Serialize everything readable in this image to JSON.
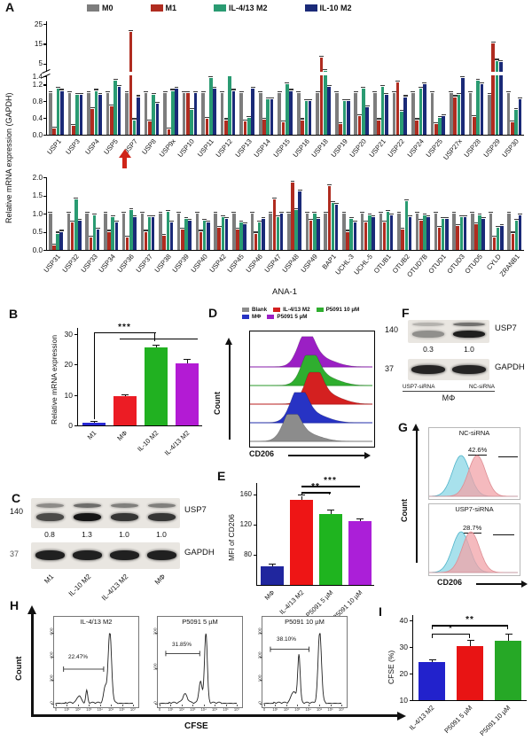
{
  "labels": {
    "A": "A",
    "B": "B",
    "C": "C",
    "D": "D",
    "E": "E",
    "F": "F",
    "G": "G",
    "H": "H",
    "I": "I"
  },
  "chart_data": {
    "panelA_row1": {
      "type": "bar",
      "ylabel": "Relative mRNA expression (GAPDH)",
      "yticks_top": [
        5,
        15,
        25
      ],
      "yticks_bottom": [
        0.0,
        0.4,
        0.8,
        1.2,
        1.4
      ],
      "break_value": 1.4,
      "ymax": 25,
      "arrow_at": "USP7",
      "categories": [
        "USP1",
        "USP3",
        "USP4",
        "USP5",
        "USP7",
        "USP8",
        "USP9x",
        "USP10",
        "USP11",
        "USP12",
        "USP13",
        "USP14",
        "USP15",
        "USP16",
        "USP18",
        "USP19",
        "USP20",
        "USP21",
        "USP22",
        "USP24",
        "USP25",
        "USP27x",
        "USP28",
        "USP29",
        "USP30"
      ],
      "series": [
        {
          "name": "M0",
          "color": "#7d7d7d",
          "values": [
            1,
            1,
            1,
            1,
            1,
            1,
            1,
            1,
            1,
            1,
            1,
            1,
            1,
            1,
            1,
            1,
            1,
            1,
            1,
            1,
            1,
            1,
            1,
            0.95,
            1
          ]
        },
        {
          "name": "M1",
          "color": "#b02c20",
          "values": [
            0.15,
            0.22,
            0.62,
            0.68,
            21,
            0.32,
            0.12,
            1.0,
            0.38,
            0.35,
            0.32,
            0.36,
            0.3,
            0.35,
            8.0,
            0.25,
            0.45,
            0.35,
            1.25,
            0.35,
            0.25,
            0.9,
            0.42,
            15.0,
            0.3
          ]
        },
        {
          "name": "IL-4/13 M2",
          "color": "#2a9b72",
          "values": [
            1.1,
            0.95,
            1.05,
            1.3,
            0.35,
            0.95,
            1.05,
            0.6,
            1.35,
            1.4,
            0.4,
            0.85,
            1.2,
            0.8,
            1.5,
            0.8,
            1.1,
            1.15,
            0.55,
            1.1,
            0.4,
            0.95,
            1.3,
            6.5,
            0.6
          ]
        },
        {
          "name": "IL-10 M2",
          "color": "#1a2a78",
          "values": [
            1.05,
            0.95,
            0.95,
            1.15,
            0.9,
            0.75,
            1.1,
            1.0,
            1.1,
            1.05,
            1.1,
            0.85,
            1.05,
            0.8,
            1.15,
            0.8,
            0.65,
            0.95,
            0.9,
            1.2,
            0.45,
            1.35,
            1.2,
            6.0,
            0.85
          ]
        }
      ]
    },
    "panelA_row2": {
      "type": "bar",
      "xlabel": "ANA-1",
      "ymax": 2.0,
      "yticks": [
        0.0,
        0.5,
        1.0,
        1.5,
        2.0
      ],
      "categories": [
        "USP31",
        "USP32",
        "USP33",
        "USP34",
        "USP36",
        "USP37",
        "USP38",
        "USP39",
        "USP40",
        "USP42",
        "USP45",
        "USP46",
        "USP47",
        "USP48",
        "USP49",
        "BAP1",
        "UCHL-3",
        "UCHL-5",
        "OTUB1",
        "OTUB2",
        "OTUD7B",
        "OTUD1",
        "OTUD3",
        "OTUD5",
        "CYLD",
        "ZRANB1"
      ],
      "series": [
        {
          "name": "M0",
          "color": "#7d7d7d",
          "values": [
            1,
            1,
            1,
            1,
            1,
            1,
            1,
            1,
            1,
            1,
            1,
            1,
            1,
            1,
            1,
            1,
            1,
            1,
            1,
            1,
            1,
            1,
            1,
            1,
            1,
            1
          ]
        },
        {
          "name": "M1",
          "color": "#b02c20",
          "values": [
            0.12,
            0.75,
            0.35,
            0.5,
            0.35,
            0.5,
            0.4,
            0.55,
            0.5,
            0.6,
            0.55,
            0.45,
            1.4,
            1.85,
            0.8,
            1.75,
            0.5,
            0.75,
            0.75,
            0.55,
            0.8,
            0.6,
            0.65,
            0.7,
            0.35,
            0.45
          ]
        },
        {
          "name": "IL-4/13 M2",
          "color": "#2a9b72",
          "values": [
            0.45,
            1.4,
            0.95,
            0.9,
            1.1,
            0.9,
            1.05,
            0.85,
            0.8,
            0.9,
            0.75,
            0.75,
            0.9,
            1.1,
            1.0,
            1.3,
            0.85,
            0.95,
            1.05,
            1.35,
            0.95,
            0.85,
            0.9,
            0.95,
            0.6,
            0.8
          ]
        },
        {
          "name": "IL-10 M2",
          "color": "#1a2a78",
          "values": [
            0.5,
            0.8,
            0.55,
            0.75,
            0.9,
            0.9,
            0.75,
            0.8,
            0.75,
            0.85,
            0.7,
            0.85,
            1.0,
            1.6,
            0.85,
            1.25,
            0.75,
            0.9,
            0.95,
            0.9,
            0.9,
            0.85,
            0.9,
            0.85,
            0.65,
            0.95
          ]
        }
      ]
    },
    "panelB": {
      "type": "bar",
      "ylabel": "Relative mRNA expression",
      "ylim": [
        0,
        32
      ],
      "yticks": [
        0,
        10,
        20,
        30
      ],
      "categories": [
        "M1",
        "MΦ",
        "IL-10 M2",
        "IL-4/13 M2"
      ],
      "values": [
        1,
        9.5,
        25.5,
        20.5
      ],
      "errors": [
        0.15,
        0.3,
        0.8,
        0.9
      ],
      "colors": [
        "#2929d4",
        "#ec1c24",
        "#21b121",
        "#b31bd4"
      ],
      "sigs": [
        {
          "x1": 0,
          "x2": 2,
          "y": 30.5,
          "y1": 2,
          "y2": 27.5,
          "stars": "***"
        },
        {
          "x1": 0.85,
          "x2": 3.35,
          "y": 28.6,
          "y1": 28.6,
          "y2": 28.6,
          "stars": ""
        }
      ]
    },
    "panelD": {
      "type": "flow-histogram-ridge",
      "xlabel": "CD206",
      "ylabel": "Count",
      "legend": [
        {
          "name": "Blank",
          "color": "#8c8c8c"
        },
        {
          "name": "IL-4/13 M2",
          "color": "#d42020"
        },
        {
          "name": "P5091 10 µM",
          "color": "#2fae2f"
        },
        {
          "name": "MΦ",
          "color": "#2733c4"
        },
        {
          "name": "P5091 5 µM",
          "color": "#9b1fc4"
        }
      ],
      "ridges": [
        {
          "name": "Blank",
          "color": "#8c8c8c",
          "center": 0.34,
          "height": 0.85
        },
        {
          "name": "MΦ",
          "color": "#2733c4",
          "center": 0.4,
          "height": 0.95
        },
        {
          "name": "IL-4/13 M2",
          "color": "#d42020",
          "center": 0.52,
          "height": 1.0
        },
        {
          "name": "P5091 10 µM",
          "color": "#2fae2f",
          "center": 0.49,
          "height": 0.95
        },
        {
          "name": "P5091 5 µM",
          "color": "#9b1fc4",
          "center": 0.46,
          "height": 0.95
        }
      ]
    },
    "panelE": {
      "type": "bar",
      "ylabel": "MFI of CD206",
      "ylim": [
        40,
        175
      ],
      "yticks": [
        80,
        120,
        160
      ],
      "categories": [
        "MΦ",
        "IL-4/13 M2",
        "P5091 5 µM",
        "P5091 10 µM"
      ],
      "values": [
        65,
        153,
        134,
        124
      ],
      "errors": [
        2,
        5,
        5,
        3
      ],
      "colors": [
        "#20269e",
        "#ee1515",
        "#1fb41f",
        "#ab1fd8"
      ],
      "sigs": [
        {
          "x1": 1,
          "x2": 2,
          "y": 163,
          "y1": 160,
          "y2": 160,
          "stars": "**"
        },
        {
          "x1": 1,
          "x2": 3,
          "y": 171,
          "y1": 171,
          "y2": 171,
          "stars": "***"
        }
      ]
    },
    "panelG": {
      "type": "flow-histogram-overlay",
      "ylabel": "Count",
      "xlabel": "CD206",
      "fill_left": "#8bd7e6",
      "fill_right": "#f2a3a8",
      "plots": [
        {
          "title": "NC-siRNA",
          "percent": "42.6%",
          "center_left": 0.36,
          "center_right": 0.54
        },
        {
          "title": "USP7-siRNA",
          "percent": "28.7%",
          "center_left": 0.36,
          "center_right": 0.47
        }
      ]
    },
    "panelH": {
      "type": "flow-histogram",
      "ylabel": "Count",
      "xlabel": "CFSE",
      "xticks": [
        "0",
        "10¹",
        "10²",
        "10³",
        "10⁴",
        "10⁵",
        "10⁶",
        "10⁷"
      ],
      "plots": [
        {
          "title": "IL-4/13 M2",
          "percent": "22.47%",
          "yticks": [
            "0",
            "200",
            "400",
            "600"
          ],
          "peaks": [
            {
              "c": 0.7,
              "h": 1.0,
              "w": 0.022
            },
            {
              "c": 0.64,
              "h": 0.22,
              "w": 0.02
            },
            {
              "c": 0.4,
              "h": 0.17,
              "w": 0.012
            },
            {
              "c": 0.3,
              "h": 0.1,
              "w": 0.025
            }
          ],
          "gate": {
            "x1": 0.1,
            "x2": 0.62,
            "y": 0.5
          }
        },
        {
          "title": "P5091 5 µM",
          "percent": "31.85%",
          "yticks": [
            "0",
            "100",
            "200"
          ],
          "peaks": [
            {
              "c": 0.6,
              "h": 1.0,
              "w": 0.018
            },
            {
              "c": 0.53,
              "h": 0.3,
              "w": 0.02
            },
            {
              "c": 0.33,
              "h": 0.12,
              "w": 0.03
            }
          ],
          "gate": {
            "x1": 0.08,
            "x2": 0.52,
            "y": 0.72
          }
        },
        {
          "title": "P5091 10 µM",
          "percent": "38.10%",
          "yticks": [
            "0",
            "100",
            "200",
            "300"
          ],
          "peaks": [
            {
              "c": 0.72,
              "h": 1.0,
              "w": 0.022
            },
            {
              "c": 0.45,
              "h": 0.68,
              "w": 0.016
            },
            {
              "c": 0.38,
              "h": 0.16,
              "w": 0.03
            }
          ],
          "gate": {
            "x1": 0.08,
            "x2": 0.58,
            "y": 0.78
          }
        }
      ]
    },
    "panelI": {
      "type": "bar",
      "ylabel": "CFSE (%)",
      "ylim": [
        10,
        42
      ],
      "yticks": [
        10,
        20,
        30,
        40
      ],
      "categories": [
        "IL-4/13 M2",
        "P5091 5 µM",
        "P5091 10 µM"
      ],
      "values": [
        24.5,
        30.5,
        32.5
      ],
      "errors": [
        0.6,
        1.8,
        2.2
      ],
      "colors": [
        "#2222cc",
        "#e81414",
        "#26a826"
      ],
      "sigs": [
        {
          "x1": 0,
          "x2": 1,
          "y": 35,
          "y1": 33.5,
          "y2": 33.5,
          "stars": "*"
        },
        {
          "x1": 0,
          "x2": 2,
          "y": 38.2,
          "y1": 36.8,
          "y2": 36.8,
          "stars": "**"
        }
      ]
    }
  },
  "panelC": {
    "marker_top": "140",
    "marker_bottom": "37",
    "protein_top": "USP7",
    "protein_bottom": "GAPDH",
    "quantification": [
      "0.8",
      "1.3",
      "1.0",
      "1.0"
    ],
    "lanes": [
      "M1",
      "IL-10 M2",
      "IL-4/13 M2",
      "MΦ"
    ]
  },
  "panelF": {
    "marker_top": "140",
    "marker_bottom": "37",
    "protein_top": "USP7",
    "protein_bottom": "GAPDH",
    "quantification": [
      "0.3",
      "1.0"
    ],
    "lanes": [
      "USP7-siRNA",
      "NC-siRNA"
    ],
    "group_label": "MΦ"
  }
}
